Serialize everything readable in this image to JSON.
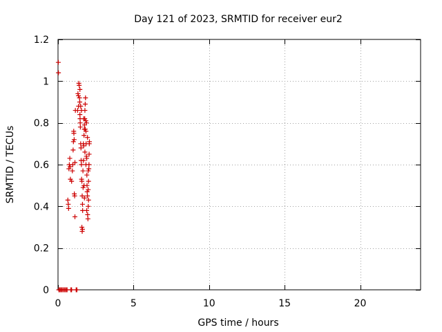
{
  "chart_data": {
    "type": "scatter",
    "title": "Day 121 of 2023, SRMTID for receiver eur2",
    "xlabel": "GPS time / hours",
    "ylabel": "SRMTID / TECUs",
    "xlim": [
      0,
      24
    ],
    "ylim": [
      0,
      1.2
    ],
    "xticks": [
      0,
      5,
      10,
      15,
      20
    ],
    "xtick_labels": [
      "0",
      "5",
      "10",
      "15",
      "20"
    ],
    "yticks": [
      0,
      0.2,
      0.4,
      0.6,
      0.8,
      1,
      1.2
    ],
    "ytick_labels": [
      "0",
      "0.2",
      "0.4",
      "0.6",
      "0.8",
      "1",
      "1.2"
    ],
    "grid": true,
    "marker": "+",
    "color": "#cc0000",
    "series": [
      {
        "name": "SRMTID",
        "points": [
          [
            0.02,
            1.09
          ],
          [
            0.03,
            1.04
          ],
          [
            0.05,
            0
          ],
          [
            0.12,
            0
          ],
          [
            0.18,
            0
          ],
          [
            0.25,
            0
          ],
          [
            0.32,
            0
          ],
          [
            0.4,
            0
          ],
          [
            0.47,
            0
          ],
          [
            0.55,
            0
          ],
          [
            0.6,
            0
          ],
          [
            0.85,
            0
          ],
          [
            0.9,
            0
          ],
          [
            1.2,
            0
          ],
          [
            1.25,
            0
          ],
          [
            0.65,
            0.43
          ],
          [
            0.68,
            0.41
          ],
          [
            0.7,
            0.39
          ],
          [
            0.72,
            0.58
          ],
          [
            0.75,
            0.6
          ],
          [
            0.78,
            0.63
          ],
          [
            0.8,
            0.59
          ],
          [
            0.82,
            0.53
          ],
          [
            0.9,
            0.52
          ],
          [
            0.95,
            0.57
          ],
          [
            0.98,
            0.6
          ],
          [
            1.0,
            0.67
          ],
          [
            1.02,
            0.71
          ],
          [
            1.04,
            0.76
          ],
          [
            1.05,
            0.75
          ],
          [
            1.07,
            0.72
          ],
          [
            1.08,
            0.46
          ],
          [
            1.1,
            0.45
          ],
          [
            1.12,
            0.35
          ],
          [
            1.12,
            0.61
          ],
          [
            1.15,
            0.86
          ],
          [
            1.3,
            0.86
          ],
          [
            1.32,
            0.94
          ],
          [
            1.35,
            0.93
          ],
          [
            1.36,
            0.88
          ],
          [
            1.38,
            0.99
          ],
          [
            1.4,
            0.98
          ],
          [
            1.42,
            0.92
          ],
          [
            1.44,
            0.9
          ],
          [
            1.45,
            0.84
          ],
          [
            1.46,
            0.82
          ],
          [
            1.47,
            0.8
          ],
          [
            1.48,
            0.78
          ],
          [
            1.5,
            0.7
          ],
          [
            1.52,
            0.68
          ],
          [
            1.53,
            0.62
          ],
          [
            1.55,
            0.6
          ],
          [
            1.56,
            0.53
          ],
          [
            1.58,
            0.52
          ],
          [
            1.6,
            0.45
          ],
          [
            1.62,
            0.41
          ],
          [
            1.63,
            0.38
          ],
          [
            1.58,
            0.3
          ],
          [
            1.6,
            0.28
          ],
          [
            1.62,
            0.29
          ],
          [
            1.65,
            0.57
          ],
          [
            1.68,
            0.62
          ],
          [
            1.7,
            0.69
          ],
          [
            1.72,
            0.74
          ],
          [
            1.74,
            0.77
          ],
          [
            1.75,
            0.79
          ],
          [
            1.77,
            0.82
          ],
          [
            1.78,
            0.86
          ],
          [
            1.8,
            0.89
          ],
          [
            1.82,
            0.92
          ],
          [
            1.84,
            0.81
          ],
          [
            1.85,
            0.76
          ],
          [
            1.86,
            0.7
          ],
          [
            1.88,
            0.64
          ],
          [
            1.9,
            0.63
          ],
          [
            1.91,
            0.55
          ],
          [
            1.92,
            0.5
          ],
          [
            1.93,
            0.47
          ],
          [
            1.95,
            0.45
          ],
          [
            1.96,
            0.36
          ],
          [
            1.98,
            0.34
          ],
          [
            2.0,
            0.4
          ],
          [
            2.02,
            0.43
          ],
          [
            2.0,
            0.48
          ],
          [
            2.02,
            0.52
          ],
          [
            2.04,
            0.58
          ],
          [
            2.05,
            0.6
          ],
          [
            2.06,
            0.65
          ],
          [
            2.07,
            0.7
          ],
          [
            2.08,
            0.71
          ],
          [
            1.88,
            0.8
          ],
          [
            1.85,
            0.6
          ],
          [
            1.78,
            0.66
          ],
          [
            1.72,
            0.5
          ],
          [
            1.68,
            0.7
          ],
          [
            1.7,
            0.82
          ],
          [
            1.55,
            0.86
          ],
          [
            1.5,
            0.88
          ],
          [
            1.45,
            0.96
          ],
          [
            1.8,
            0.77
          ],
          [
            1.95,
            0.73
          ],
          [
            2.0,
            0.57
          ],
          [
            1.9,
            0.38
          ],
          [
            1.75,
            0.44
          ],
          [
            1.66,
            0.49
          ]
        ]
      }
    ]
  }
}
